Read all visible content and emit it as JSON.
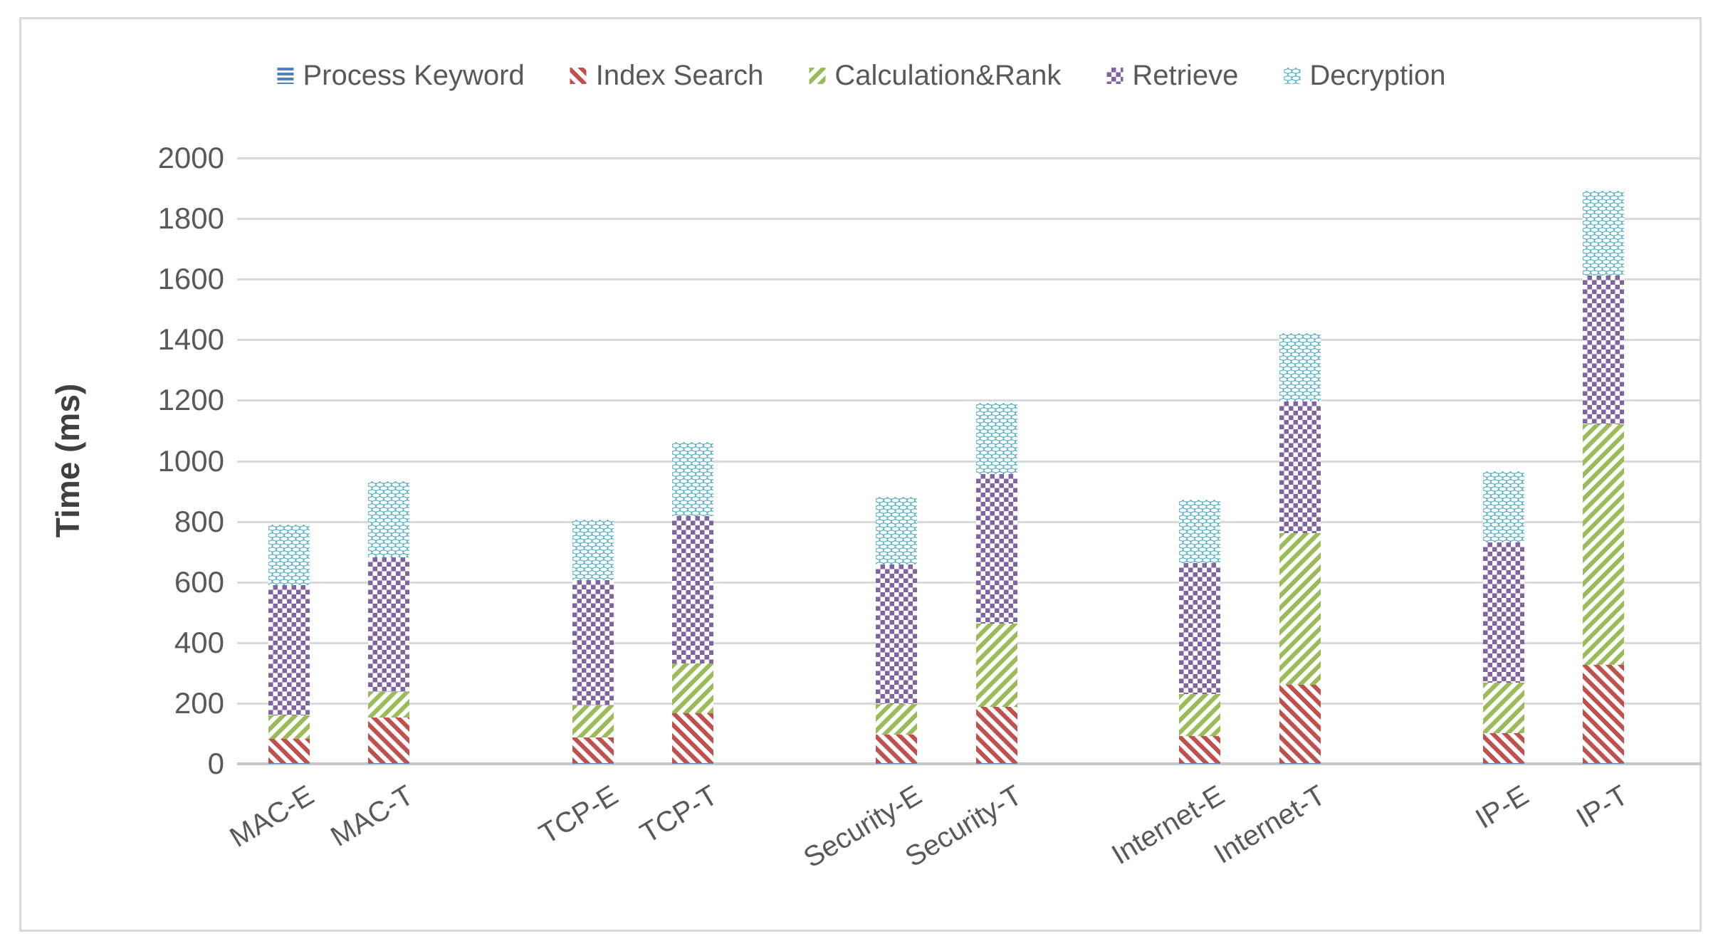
{
  "chart_data": {
    "type": "bar",
    "stacked": true,
    "title": "",
    "xlabel": "",
    "ylabel": "Time (ms)",
    "ylim": [
      0,
      2000
    ],
    "ytick_step": 200,
    "grid": true,
    "legend_position": "top",
    "categories": [
      "MAC-E",
      "MAC-T",
      "TCP-E",
      "TCP-T",
      "Security-E",
      "Security-T",
      "Internet-E",
      "Internet-T",
      "IP-E",
      "IP-T"
    ],
    "series": [
      {
        "name": "Process Keyword",
        "pattern": "horizontal-lines",
        "color": "#4F81BD",
        "values": [
          2,
          2,
          2,
          2,
          2,
          2,
          2,
          2,
          2,
          2
        ]
      },
      {
        "name": "Index Search",
        "pattern": "diagonal-down",
        "color": "#C0504D",
        "values": [
          80,
          150,
          85,
          165,
          95,
          185,
          90,
          260,
          100,
          325
        ]
      },
      {
        "name": "Calculation&Rank",
        "pattern": "diagonal-up",
        "color": "#9BBB59",
        "values": [
          78,
          85,
          105,
          165,
          100,
          275,
          138,
          500,
          165,
          795
        ]
      },
      {
        "name": "Retrieve",
        "pattern": "checker",
        "color": "#8064A2",
        "values": [
          430,
          445,
          415,
          485,
          460,
          495,
          432,
          435,
          465,
          490
        ]
      },
      {
        "name": "Decryption",
        "pattern": "dash-checker",
        "color": "#4BACC6",
        "values": [
          200,
          250,
          200,
          245,
          225,
          235,
          210,
          225,
          235,
          280
        ]
      }
    ],
    "stack_totals": [
      790,
      932,
      807,
      1062,
      882,
      1192,
      872,
      1422,
      967,
      1892
    ]
  },
  "colors": {
    "gridline": "#D9D9D9",
    "axis_line": "#C6C6C6",
    "tick_text": "#595959",
    "axis_title_text": "#404040",
    "chart_border": "#D9D9D9",
    "background": "#FFFFFF"
  }
}
